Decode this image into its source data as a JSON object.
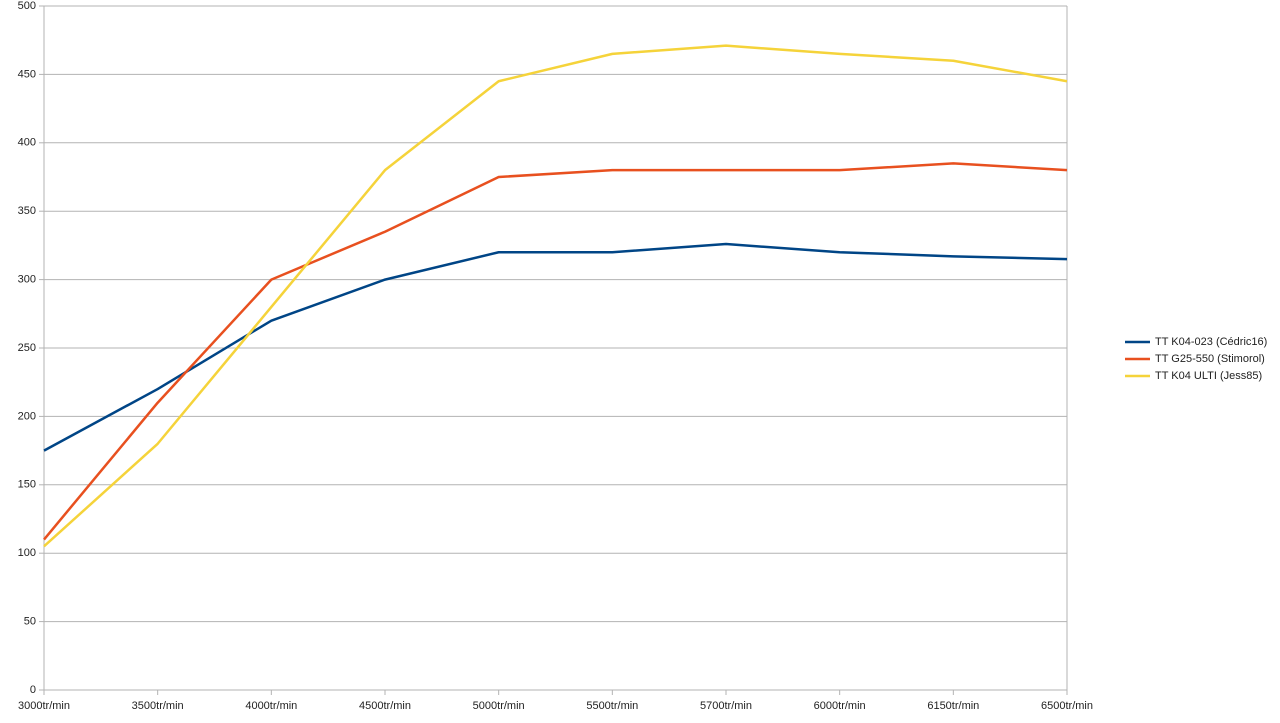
{
  "chart_data": {
    "type": "line",
    "categories": [
      "3000tr/min",
      "3500tr/min",
      "4000tr/min",
      "4500tr/min",
      "5000tr/min",
      "5500tr/min",
      "5700tr/min",
      "6000tr/min",
      "6150tr/min",
      "6500tr/min"
    ],
    "series": [
      {
        "name": "TT K04-023 (Cédric16)",
        "color": "#004586",
        "values": [
          175,
          220,
          270,
          300,
          320,
          320,
          326,
          320,
          317,
          315
        ]
      },
      {
        "name": "TT G25-550 (Stimorol)",
        "color": "#e8501f",
        "values": [
          110,
          210,
          300,
          335,
          375,
          380,
          380,
          380,
          385,
          380
        ]
      },
      {
        "name": "TT K04 ULTI (Jess85)",
        "color": "#f5d33a",
        "values": [
          105,
          180,
          280,
          380,
          445,
          465,
          471,
          465,
          460,
          445
        ]
      }
    ],
    "ylim": [
      0,
      500
    ],
    "yticks": [
      0,
      50,
      100,
      150,
      200,
      250,
      300,
      350,
      400,
      450,
      500
    ],
    "grid": true,
    "legend": "right"
  }
}
